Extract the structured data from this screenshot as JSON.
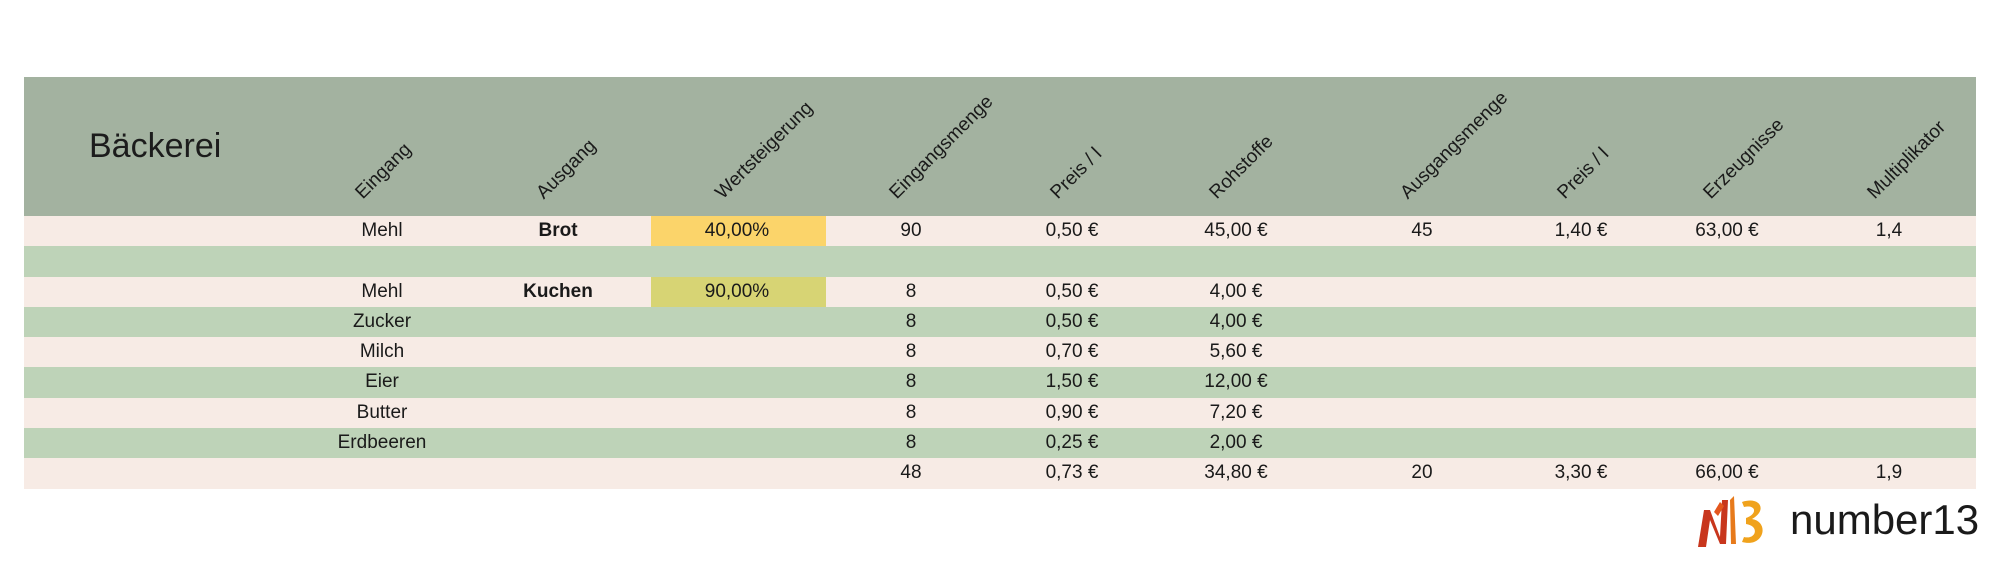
{
  "title": "Bäckerei",
  "columns": [
    "Eingang",
    "Ausgang",
    "Wertsteigerung",
    "Eingangsmenge",
    "Preis / l",
    "Rohstoffe",
    "Ausgangsmenge",
    "Preis / l",
    "Erzeugnisse",
    "Multiplikator"
  ],
  "rows": [
    {
      "eingang": "Mehl",
      "ausgang": "Brot",
      "wertsteigerung": "40,00%",
      "eingangsmenge": "90",
      "preis_ein": "0,50 €",
      "rohstoffe": "45,00 €",
      "ausgangsmenge": "45",
      "preis_aus": "1,40 €",
      "erzeugnisse": "63,00 €",
      "multiplikator": "1,4"
    },
    {
      "eingang": "",
      "ausgang": "",
      "wertsteigerung": "",
      "eingangsmenge": "",
      "preis_ein": "",
      "rohstoffe": "",
      "ausgangsmenge": "",
      "preis_aus": "",
      "erzeugnisse": "",
      "multiplikator": ""
    },
    {
      "eingang": "Mehl",
      "ausgang": "Kuchen",
      "wertsteigerung": "90,00%",
      "eingangsmenge": "8",
      "preis_ein": "0,50 €",
      "rohstoffe": "4,00 €",
      "ausgangsmenge": "",
      "preis_aus": "",
      "erzeugnisse": "",
      "multiplikator": ""
    },
    {
      "eingang": "Zucker",
      "ausgang": "",
      "wertsteigerung": "",
      "eingangsmenge": "8",
      "preis_ein": "0,50 €",
      "rohstoffe": "4,00 €",
      "ausgangsmenge": "",
      "preis_aus": "",
      "erzeugnisse": "",
      "multiplikator": ""
    },
    {
      "eingang": "Milch",
      "ausgang": "",
      "wertsteigerung": "",
      "eingangsmenge": "8",
      "preis_ein": "0,70 €",
      "rohstoffe": "5,60 €",
      "ausgangsmenge": "",
      "preis_aus": "",
      "erzeugnisse": "",
      "multiplikator": ""
    },
    {
      "eingang": "Eier",
      "ausgang": "",
      "wertsteigerung": "",
      "eingangsmenge": "8",
      "preis_ein": "1,50 €",
      "rohstoffe": "12,00 €",
      "ausgangsmenge": "",
      "preis_aus": "",
      "erzeugnisse": "",
      "multiplikator": ""
    },
    {
      "eingang": "Butter",
      "ausgang": "",
      "wertsteigerung": "",
      "eingangsmenge": "8",
      "preis_ein": "0,90 €",
      "rohstoffe": "7,20 €",
      "ausgangsmenge": "",
      "preis_aus": "",
      "erzeugnisse": "",
      "multiplikator": ""
    },
    {
      "eingang": "Erdbeeren",
      "ausgang": "",
      "wertsteigerung": "",
      "eingangsmenge": "8",
      "preis_ein": "0,25 €",
      "rohstoffe": "2,00 €",
      "ausgangsmenge": "",
      "preis_aus": "",
      "erzeugnisse": "",
      "multiplikator": ""
    },
    {
      "eingang": "",
      "ausgang": "",
      "wertsteigerung": "",
      "eingangsmenge": "48",
      "preis_ein": "0,73 €",
      "rohstoffe": "34,80 €",
      "ausgangsmenge": "20",
      "preis_aus": "3,30 €",
      "erzeugnisse": "66,00 €",
      "multiplikator": "1,9"
    }
  ],
  "row_styles": [
    "light",
    "green",
    "light",
    "green",
    "light",
    "green",
    "light",
    "green",
    "light"
  ],
  "highlights": {
    "0": "#fbd46a",
    "2": "#d7d474"
  },
  "colors": {
    "header": "#a3b2a0",
    "row_light": "#f7ebe5",
    "row_green": "#bed3b8",
    "logo_red": "#c8361d",
    "logo_orange": "#f0a21c"
  },
  "logo": {
    "text": "number13",
    "mark": "N13"
  }
}
